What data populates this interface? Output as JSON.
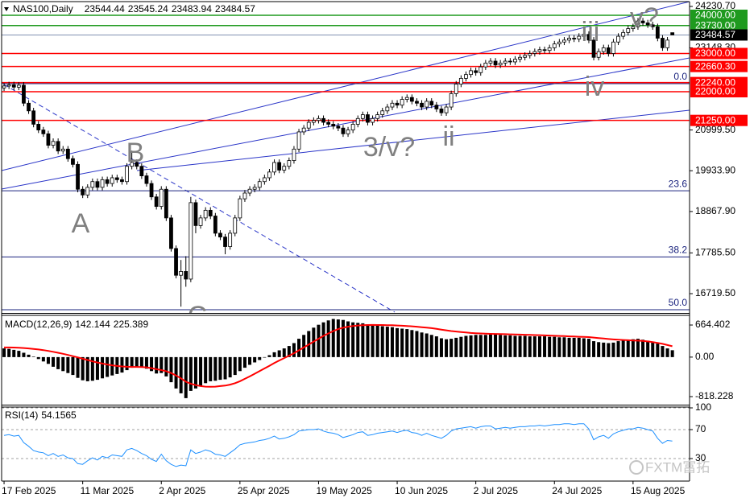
{
  "chart_data": [
    {
      "type": "candlestick",
      "title": "NAS100,Daily",
      "categories": [
        "17 Feb 2025",
        null,
        null,
        null,
        null,
        null,
        null,
        null,
        null,
        null,
        null,
        null,
        null,
        null,
        null,
        null,
        "11 Mar 2025",
        null,
        null,
        null,
        null,
        null,
        null,
        null,
        null,
        null,
        null,
        null,
        null,
        null,
        null,
        null,
        "2 Apr 2025",
        null,
        null,
        null,
        null,
        null,
        null,
        null,
        null,
        null,
        null,
        null,
        null,
        null,
        null,
        null,
        "25 Apr 2025",
        null,
        null,
        null,
        null,
        null,
        null,
        null,
        null,
        null,
        null,
        null,
        null,
        null,
        null,
        null,
        "19 May 2025",
        null,
        null,
        null,
        null,
        null,
        null,
        null,
        null,
        null,
        null,
        null,
        null,
        null,
        null,
        null,
        "10 Jun 2025",
        null,
        null,
        null,
        null,
        null,
        null,
        null,
        null,
        null,
        null,
        null,
        null,
        null,
        null,
        null,
        "2 Jul 2025",
        null,
        null,
        null,
        null,
        null,
        null,
        null,
        null,
        null,
        null,
        null,
        null,
        null,
        null,
        null,
        "24 Jul 2025",
        null,
        null,
        null,
        null,
        null,
        null,
        null,
        null,
        null,
        null,
        null,
        null,
        null,
        null,
        null,
        "15 Aug 2025",
        null,
        null,
        null,
        null,
        null,
        null,
        null,
        null
      ],
      "open": [
        22100,
        22150,
        22180,
        22120,
        22170,
        21700,
        21500,
        21150,
        21000,
        20900,
        20600,
        20700,
        20450,
        20500,
        20250,
        20100,
        19450,
        19300,
        19500,
        19650,
        19500,
        19700,
        19600,
        19750,
        19700,
        19650,
        20050,
        20150,
        20050,
        19800,
        19600,
        19250,
        19000,
        19450,
        18700,
        17900,
        17200,
        17300,
        17100,
        19100,
        18500,
        18700,
        18900,
        18750,
        18300,
        18200,
        17950,
        18300,
        18700,
        19200,
        19350,
        19450,
        19500,
        19650,
        19750,
        19900,
        20150,
        19950,
        20050,
        20200,
        20500,
        20950,
        21050,
        21200,
        21250,
        21300,
        21200,
        21150,
        21100,
        21050,
        20900,
        21000,
        21150,
        21300,
        21400,
        21200,
        21300,
        21400,
        21500,
        21600,
        21700,
        21650,
        21800,
        21850,
        21750,
        21700,
        21600,
        21750,
        21650,
        21550,
        21450,
        21600,
        21950,
        22200,
        22350,
        22450,
        22550,
        22500,
        22650,
        22750,
        22800,
        22700,
        22750,
        22800,
        22780,
        22850,
        22900,
        22950,
        23000,
        23050,
        23100,
        23080,
        23150,
        23250,
        23300,
        23350,
        23400,
        23380,
        23450,
        23500,
        23350,
        22900,
        23050,
        23150,
        23000,
        23300,
        23450,
        23550,
        23650,
        23700,
        23850,
        23800,
        23750,
        23700,
        23400,
        23150,
        23544.44
      ],
      "high": [
        22230,
        22260,
        22260,
        22250,
        22250,
        21780,
        21580,
        21230,
        21080,
        20980,
        20780,
        20780,
        20580,
        20580,
        20330,
        20180,
        19530,
        19580,
        19730,
        19730,
        19780,
        19780,
        19830,
        19830,
        19780,
        20130,
        20460,
        20230,
        20130,
        19880,
        19680,
        19330,
        19530,
        19530,
        18780,
        17980,
        17600,
        17700,
        19250,
        19180,
        18780,
        18980,
        18980,
        18830,
        18380,
        18280,
        18380,
        18780,
        19280,
        19430,
        19530,
        19580,
        19730,
        19830,
        19980,
        20230,
        20230,
        20130,
        20280,
        20580,
        21030,
        21130,
        21280,
        21330,
        21380,
        21380,
        21280,
        21230,
        21180,
        21130,
        21080,
        21230,
        21380,
        21480,
        21480,
        21380,
        21480,
        21580,
        21680,
        21780,
        21780,
        21880,
        21930,
        21930,
        21830,
        21780,
        21830,
        21830,
        21730,
        21630,
        21680,
        22030,
        22280,
        22430,
        22530,
        22630,
        22630,
        22730,
        22830,
        22880,
        22880,
        22830,
        22880,
        22880,
        22930,
        22980,
        23030,
        23080,
        23130,
        23180,
        23180,
        23230,
        23330,
        23380,
        23430,
        23480,
        23480,
        23530,
        23580,
        23580,
        23430,
        23130,
        23230,
        23230,
        23380,
        23530,
        23630,
        23730,
        23780,
        23930,
        23930,
        23880,
        23830,
        23780,
        23480,
        23430,
        23545.24
      ],
      "low": [
        22020,
        22070,
        22040,
        22040,
        21620,
        21420,
        21070,
        20920,
        20820,
        20520,
        20520,
        20370,
        20370,
        20170,
        20020,
        19370,
        19220,
        19220,
        19420,
        19420,
        19420,
        19520,
        19520,
        19620,
        19570,
        19570,
        19970,
        19970,
        19720,
        19520,
        19170,
        18920,
        18920,
        18620,
        17820,
        17120,
        16380,
        16900,
        17020,
        18300,
        18420,
        18620,
        18670,
        18220,
        18120,
        17750,
        17870,
        18220,
        18620,
        19120,
        19270,
        19370,
        19420,
        19570,
        19670,
        19820,
        19870,
        19870,
        19970,
        20120,
        20420,
        20870,
        20970,
        21120,
        21170,
        21120,
        21070,
        21020,
        20970,
        20820,
        20820,
        20920,
        21070,
        21220,
        21120,
        21120,
        21220,
        21320,
        21420,
        21520,
        21570,
        21570,
        21720,
        21670,
        21620,
        21520,
        21520,
        21570,
        21470,
        21370,
        21370,
        21520,
        21870,
        22120,
        22270,
        22370,
        22420,
        22420,
        22570,
        22670,
        22620,
        22620,
        22670,
        22700,
        22700,
        22770,
        22820,
        22870,
        22920,
        22970,
        23000,
        23000,
        23070,
        23170,
        23220,
        23270,
        23300,
        23300,
        23370,
        23270,
        22820,
        22820,
        22970,
        22920,
        22920,
        23220,
        23370,
        23470,
        23570,
        23620,
        23720,
        23670,
        23620,
        23320,
        23070,
        23070,
        23483.94
      ],
      "close": [
        22150,
        22180,
        22120,
        22170,
        21700,
        21500,
        21150,
        21000,
        20900,
        20600,
        20700,
        20450,
        20500,
        20250,
        20100,
        19450,
        19300,
        19500,
        19650,
        19500,
        19700,
        19600,
        19750,
        19700,
        19650,
        20050,
        20150,
        20050,
        19800,
        19600,
        19250,
        19000,
        19450,
        18700,
        17900,
        17200,
        17300,
        17100,
        19100,
        18500,
        18700,
        18900,
        18750,
        18300,
        18200,
        17950,
        18300,
        18700,
        19200,
        19350,
        19450,
        19500,
        19650,
        19750,
        19900,
        20150,
        19950,
        20050,
        20200,
        20500,
        20950,
        21050,
        21200,
        21250,
        21300,
        21200,
        21150,
        21100,
        21050,
        20900,
        21000,
        21150,
        21300,
        21400,
        21200,
        21300,
        21400,
        21500,
        21600,
        21700,
        21650,
        21800,
        21850,
        21750,
        21700,
        21600,
        21750,
        21650,
        21550,
        21450,
        21600,
        21950,
        22200,
        22350,
        22450,
        22550,
        22500,
        22650,
        22750,
        22800,
        22700,
        22750,
        22800,
        22780,
        22850,
        22900,
        22950,
        23000,
        23050,
        23100,
        23080,
        23150,
        23250,
        23300,
        23350,
        23400,
        23380,
        23450,
        23500,
        23350,
        22900,
        23050,
        23150,
        23000,
        23300,
        23450,
        23550,
        23650,
        23700,
        23850,
        23800,
        23750,
        23700,
        23400,
        23150,
        23350,
        23484.57
      ],
      "colors": {
        "up": "#ffffff",
        "down": "#000000",
        "wick": "#000000",
        "current": "#000000",
        "current_line": "#8090b0",
        "fib": "#1a237e",
        "trend": "#2a35c8"
      },
      "ylim": [
        16236,
        24357
      ],
      "yticks": [
        {
          "value": 24230.7,
          "label": "24230.70"
        },
        {
          "value": 23148.3,
          "label": "23148.30"
        },
        {
          "value": 20999.5,
          "label": "20999.50"
        },
        {
          "value": 19933.9,
          "label": "19933.90"
        },
        {
          "value": 18867.9,
          "label": "18867.90"
        },
        {
          "value": 17785.5,
          "label": "17785.50"
        },
        {
          "value": 16719.5,
          "label": "16719.50"
        }
      ],
      "levels": [
        {
          "value": 24000,
          "label": "24000.00",
          "color": "#1f9a1f"
        },
        {
          "value": 23730,
          "label": "23730.00",
          "color": "#1f9a1f"
        },
        {
          "value": 23000,
          "label": "23000.00",
          "color": "#ff0000"
        },
        {
          "value": 22660.3,
          "label": "22660.30",
          "color": "#ff0000"
        },
        {
          "value": 22240,
          "label": "22240.00",
          "color": "#ff0000"
        },
        {
          "value": 22000,
          "label": "22000.00",
          "color": "#ff0000"
        },
        {
          "value": 21250,
          "label": "21250.00",
          "color": "#ff0000"
        }
      ],
      "fib": [
        {
          "level": {
            "value": 0,
            "label": "0.0"
          },
          "price": 22210
        },
        {
          "level": 23.6,
          "price": 19410
        },
        {
          "level": 38.2,
          "price": 17680
        },
        {
          "level": {
            "value": 50,
            "label": "50.0"
          },
          "price": 16300
        }
      ],
      "annotations": [
        "A",
        "B",
        "C",
        "3/v?",
        "ii",
        "iii",
        "iv",
        "v?"
      ]
    },
    {
      "type": "macd",
      "title": "MACD(12,26,9)",
      "histogram": [
        180,
        170,
        150,
        130,
        90,
        50,
        10,
        -40,
        -90,
        -140,
        -200,
        -250,
        -290,
        -330,
        -370,
        -430,
        -480,
        -500,
        -490,
        -470,
        -440,
        -410,
        -380,
        -350,
        -320,
        -270,
        -220,
        -200,
        -210,
        -240,
        -290,
        -340,
        -330,
        -400,
        -520,
        -650,
        -750,
        -850,
        -700,
        -650,
        -600,
        -540,
        -500,
        -490,
        -470,
        -460,
        -420,
        -370,
        -290,
        -220,
        -160,
        -110,
        -60,
        -10,
        40,
        100,
        140,
        180,
        230,
        290,
        380,
        460,
        540,
        610,
        670,
        720,
        760,
        790,
        780,
        770,
        740,
        720,
        710,
        700,
        680,
        660,
        650,
        640,
        630,
        620,
        600,
        590,
        580,
        560,
        540,
        510,
        490,
        460,
        430,
        390,
        370,
        380,
        400,
        420,
        440,
        450,
        460,
        460,
        460,
        470,
        470,
        460,
        450,
        450,
        440,
        440,
        440,
        430,
        430,
        430,
        430,
        420,
        420,
        410,
        410,
        400,
        400,
        400,
        390,
        380,
        330,
        310,
        300,
        290,
        300,
        330,
        350,
        360,
        370,
        380,
        360,
        340,
        320,
        280,
        230,
        180,
        142.144
      ],
      "signal": [
        200,
        200,
        198,
        194,
        188,
        180,
        170,
        158,
        144,
        128,
        110,
        90,
        68,
        44,
        20,
        -6,
        -34,
        -60,
        -88,
        -112,
        -134,
        -154,
        -170,
        -184,
        -194,
        -200,
        -204,
        -204,
        -205,
        -212,
        -228,
        -250,
        -268,
        -292,
        -330,
        -380,
        -440,
        -510,
        -550,
        -580,
        -600,
        -612,
        -615,
        -612,
        -600,
        -590,
        -570,
        -540,
        -500,
        -450,
        -400,
        -345,
        -290,
        -235,
        -180,
        -124,
        -70,
        -20,
        30,
        80,
        140,
        200,
        260,
        320,
        380,
        440,
        490,
        540,
        580,
        610,
        630,
        645,
        655,
        662,
        665,
        666,
        665,
        664,
        662,
        660,
        655,
        650,
        645,
        638,
        630,
        620,
        610,
        600,
        585,
        570,
        555,
        540,
        530,
        520,
        510,
        500,
        495,
        490,
        485,
        482,
        480,
        478,
        475,
        472,
        469,
        466,
        463,
        460,
        457,
        454,
        450,
        446,
        442,
        438,
        434,
        430,
        426,
        422,
        418,
        414,
        405,
        395,
        385,
        375,
        367,
        360,
        355,
        350,
        345,
        342,
        335,
        325,
        310,
        295,
        275,
        250,
        225.389
      ],
      "colors": {
        "histogram": "#000000",
        "signal": "#ff0000"
      },
      "ylim": [
        -985,
        848
      ],
      "yticks": [
        664.402,
        {
          "value": 0,
          "label": "0.00"
        },
        -818.228
      ]
    },
    {
      "type": "line",
      "title": "RSI(14)",
      "values": [
        62,
        63,
        61,
        62,
        52,
        47,
        41,
        39,
        38,
        34,
        37,
        33,
        35,
        31,
        30,
        23,
        22,
        27,
        31,
        28,
        33,
        31,
        35,
        34,
        33,
        42,
        44,
        41,
        37,
        34,
        29,
        26,
        36,
        27,
        22,
        19,
        21,
        20,
        42,
        37,
        39,
        42,
        40,
        36,
        35,
        33,
        38,
        43,
        49,
        51,
        52,
        53,
        55,
        56,
        58,
        61,
        57,
        58,
        60,
        63,
        68,
        69,
        70,
        70,
        71,
        68,
        66,
        65,
        63,
        59,
        61,
        63,
        66,
        67,
        62,
        63,
        65,
        66,
        67,
        68,
        66,
        68,
        69,
        66,
        65,
        62,
        65,
        62,
        60,
        58,
        62,
        68,
        71,
        72,
        73,
        74,
        72,
        74,
        75,
        75,
        71,
        72,
        73,
        72,
        73,
        74,
        74,
        75,
        75,
        76,
        75,
        76,
        77,
        77,
        78,
        78,
        77,
        78,
        78,
        71,
        56,
        60,
        62,
        58,
        64,
        67,
        69,
        71,
        71,
        73,
        72,
        70,
        68,
        58,
        51,
        55,
        54.1565
      ],
      "color": "#1e90ff",
      "ylim": [
        0,
        100
      ],
      "yticks": [
        100,
        70,
        30
      ],
      "grid": "dashed"
    }
  ],
  "watermark": "FXTM富拓"
}
